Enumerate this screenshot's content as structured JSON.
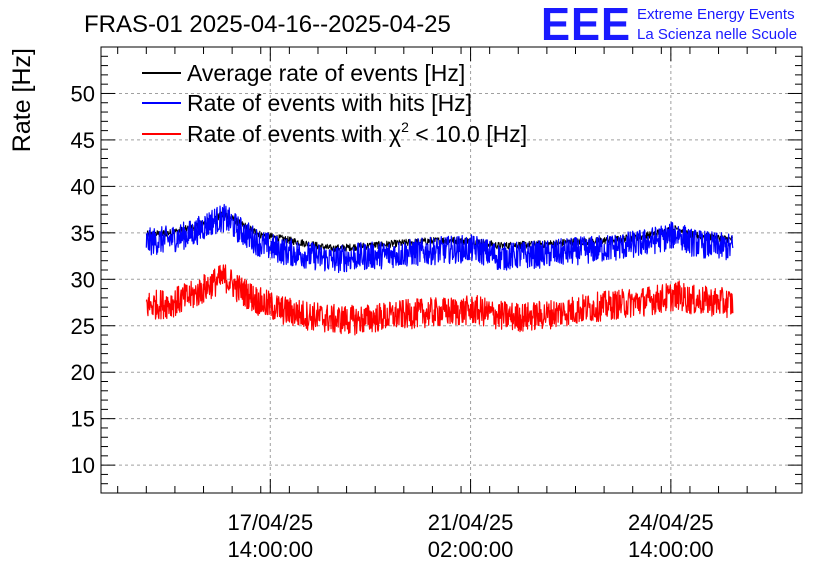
{
  "chart_data": {
    "type": "line",
    "title": "FRAS-01 2025-04-16--2025-04-25",
    "ylabel": "Rate [Hz]",
    "xlabel": "",
    "ylim": [
      7,
      55
    ],
    "xlim_hours": [
      -57,
      237
    ],
    "y_ticks": [
      10,
      15,
      20,
      25,
      30,
      35,
      40,
      45,
      50
    ],
    "x_ticks": [
      {
        "hour": 14,
        "date": "17/04/25",
        "time": "14:00:00"
      },
      {
        "hour": 98,
        "date": "21/04/25",
        "time": "02:00:00"
      },
      {
        "hour": 182,
        "date": "24/04/25",
        "time": "14:00:00"
      }
    ],
    "x_data_range_hours": [
      -38,
      208
    ],
    "grid": true,
    "legend_position": "top-left",
    "series": [
      {
        "name": "Average rate of events [Hz]",
        "color": "#000000",
        "x_hours": [
          -38,
          -28,
          -18,
          -10,
          -5,
          0,
          10,
          20,
          30,
          40,
          50,
          60,
          70,
          80,
          90,
          100,
          110,
          120,
          130,
          140,
          150,
          160,
          170,
          180,
          185,
          190,
          200,
          208
        ],
        "values": [
          34.8,
          35.0,
          35.6,
          36.5,
          37.0,
          36.2,
          34.8,
          34.3,
          33.8,
          33.3,
          33.5,
          33.7,
          33.9,
          34.1,
          34.2,
          34.1,
          33.6,
          33.7,
          33.8,
          34.0,
          34.1,
          34.3,
          34.6,
          35.2,
          35.5,
          34.8,
          34.5,
          34.3
        ],
        "noise": 0.4
      },
      {
        "name": "Rate of events with hits [Hz]",
        "color": "#0000ff",
        "x_hours": [
          -38,
          -28,
          -18,
          -10,
          -5,
          0,
          10,
          20,
          30,
          40,
          50,
          60,
          70,
          80,
          90,
          100,
          110,
          120,
          130,
          140,
          150,
          160,
          170,
          180,
          185,
          190,
          200,
          208
        ],
        "values": [
          34.0,
          34.3,
          35.0,
          36.3,
          36.6,
          35.5,
          33.8,
          33.0,
          32.6,
          32.1,
          32.4,
          32.6,
          32.8,
          33.0,
          33.2,
          33.3,
          32.4,
          32.6,
          32.7,
          33.0,
          33.2,
          33.5,
          33.9,
          34.5,
          34.9,
          34.0,
          33.6,
          33.4
        ],
        "noise": 1.5
      },
      {
        "name": "Rate of events with χ² < 10.0 [Hz]",
        "color": "#ff0000",
        "x_hours": [
          -38,
          -28,
          -18,
          -10,
          -5,
          0,
          10,
          20,
          30,
          40,
          50,
          60,
          70,
          80,
          90,
          100,
          110,
          120,
          130,
          140,
          150,
          160,
          170,
          180,
          185,
          190,
          200,
          208
        ],
        "values": [
          27.2,
          27.4,
          28.3,
          29.6,
          30.2,
          29.1,
          27.5,
          26.6,
          26.1,
          25.7,
          25.6,
          25.9,
          26.2,
          26.4,
          26.5,
          26.7,
          26.1,
          25.9,
          26.2,
          26.6,
          27.0,
          27.3,
          27.6,
          28.0,
          28.3,
          27.8,
          27.6,
          27.4
        ],
        "noise": 1.6
      }
    ]
  },
  "logo": {
    "text": "EEE",
    "line1": "Extreme Energy Events",
    "line2": "La Scienza nelle Scuole",
    "color": "#1a1aff"
  },
  "legend": {
    "item1": "Average rate of events [Hz]",
    "item2": "Rate of events with hits [Hz]",
    "item3_prefix": "Rate of events with ",
    "item3_symbol": "χ",
    "item3_sup": "2",
    "item3_suffix": " < 10.0 [Hz]"
  }
}
